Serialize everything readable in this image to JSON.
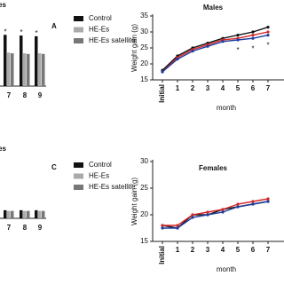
{
  "chart_data": [
    {
      "type": "bar",
      "title": "es",
      "panel": "A",
      "categories": [
        "7",
        "8",
        "9"
      ],
      "series": [
        {
          "name": "Control",
          "color": "#111111",
          "values": [
            75,
            74,
            73
          ]
        },
        {
          "name": "HE-Es",
          "color": "#aaaaaa",
          "values": [
            49,
            48,
            48
          ]
        },
        {
          "name": "HE-Es satellite",
          "color": "#777777",
          "values": [
            48,
            47,
            47
          ]
        }
      ],
      "annotations": [
        "*",
        "*",
        "*"
      ],
      "ylim": [
        0,
        100
      ]
    },
    {
      "type": "line",
      "title": "Males",
      "ylabel": "Weight gain (g)",
      "xlabel": "month",
      "categories": [
        "Initial",
        "1",
        "2",
        "3",
        "4",
        "5",
        "6",
        "7"
      ],
      "series": [
        {
          "color": "#111111",
          "values": [
            18,
            22.5,
            25,
            26.5,
            28,
            29,
            30,
            31.5
          ]
        },
        {
          "color": "#d62728",
          "values": [
            17.5,
            22,
            24.5,
            26,
            27.5,
            28,
            29,
            30
          ]
        },
        {
          "color": "#1f3f9f",
          "values": [
            17.5,
            21.5,
            24,
            25.5,
            27,
            27.5,
            28,
            29
          ]
        }
      ],
      "annotations": [
        null,
        null,
        null,
        null,
        null,
        "*",
        "*",
        "*"
      ],
      "ylim": [
        15,
        35
      ],
      "yticks": [
        15,
        20,
        25,
        30,
        35
      ]
    },
    {
      "type": "bar",
      "title": "es",
      "panel": "C",
      "categories": [
        "7",
        "8",
        "9"
      ],
      "series": [
        {
          "name": "Control",
          "color": "#111111",
          "values": [
            12,
            12,
            12
          ]
        },
        {
          "name": "HE-Es",
          "color": "#aaaaaa",
          "values": [
            11,
            11,
            11
          ]
        },
        {
          "name": "HE-Es satellite",
          "color": "#777777",
          "values": [
            11,
            11,
            11
          ]
        }
      ],
      "ylim": [
        0,
        100
      ]
    },
    {
      "type": "line",
      "title": "Females",
      "ylabel": "Weight gain (g)",
      "xlabel": "month",
      "categories": [
        "Initial",
        "1",
        "2",
        "3",
        "4",
        "5",
        "6",
        "7"
      ],
      "series": [
        {
          "color": "#111111",
          "values": [
            18,
            17.5,
            20,
            20,
            21,
            21.5,
            22,
            22.5
          ]
        },
        {
          "color": "#d62728",
          "values": [
            18,
            18,
            20,
            20.5,
            21,
            22,
            22.5,
            23
          ]
        },
        {
          "color": "#1f3f9f",
          "values": [
            17.5,
            17.5,
            19.5,
            20,
            20.5,
            21.5,
            22,
            22.5
          ]
        }
      ],
      "ylim": [
        15,
        30
      ],
      "yticks": [
        15,
        20,
        25,
        30
      ]
    }
  ]
}
